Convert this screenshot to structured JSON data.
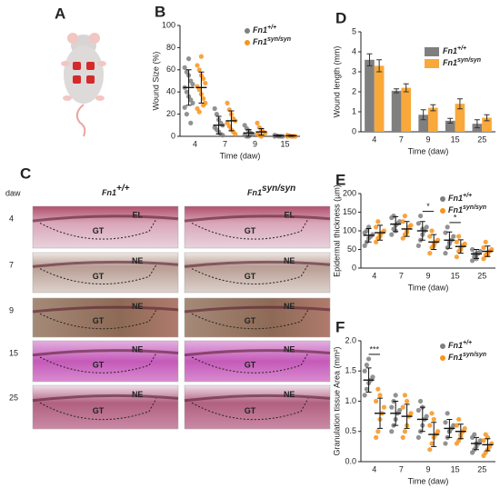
{
  "panel_a": {
    "label": "A"
  },
  "histology": {
    "label": "C",
    "axis_label": "daw",
    "columns": [
      {
        "name": "Fn1",
        "sup": "+/+"
      },
      {
        "name": "Fn1",
        "sup": "syn/syn"
      }
    ],
    "rows": [
      {
        "day": "4",
        "left": [
          "EL",
          "GT"
        ],
        "right": [
          "EL",
          "GT"
        ]
      },
      {
        "day": "7",
        "left": [
          "NE",
          "GT"
        ],
        "right": [
          "NE",
          "GT"
        ]
      },
      {
        "day": "9",
        "left": [
          "NE",
          "GT"
        ],
        "right": [
          "NE",
          "GT"
        ]
      },
      {
        "day": "15",
        "left": [
          "NE",
          "GT"
        ],
        "right": [
          "NE",
          "GT"
        ]
      },
      {
        "day": "25",
        "left": [
          "NE",
          "GT"
        ],
        "right": [
          "NE",
          "GT"
        ]
      }
    ]
  },
  "chart_data": [
    {
      "type": "dotplot",
      "label": "B",
      "x_label": "Time (daw)",
      "y_label": "Wound Size (%)",
      "categories": [
        "4",
        "7",
        "9",
        "15"
      ],
      "ylim": [
        0,
        100
      ],
      "yticks": [
        0,
        20,
        40,
        60,
        80,
        100
      ],
      "grid": false,
      "legend": "upper right",
      "series": [
        {
          "name": "Fn1",
          "name_sup": "+/+",
          "color": "#7f7f7f",
          "points": [
            [
              62,
              58,
              55,
              50,
              47,
              44,
              40,
              36,
              33,
              30,
              26,
              20,
              70,
              12
            ],
            [
              25,
              20,
              15,
              12,
              10,
              8,
              6,
              4,
              2,
              1
            ],
            [
              10,
              7,
              5,
              3,
              2,
              1,
              0,
              0
            ],
            [
              1,
              0.5,
              0,
              0,
              0,
              0
            ]
          ],
          "means": [
            44,
            10,
            3,
            0.5
          ],
          "sd": [
            16,
            8,
            3,
            0.5
          ]
        },
        {
          "name": "Fn1",
          "name_sup": "syn/syn",
          "color": "#f7941d",
          "points": [
            [
              64,
              60,
              55,
              52,
              48,
              45,
              42,
              38,
              34,
              30,
              25,
              22,
              72,
              28
            ],
            [
              30,
              24,
              20,
              16,
              14,
              12,
              9,
              6,
              4,
              2
            ],
            [
              12,
              8,
              6,
              4,
              3,
              2,
              1,
              0
            ],
            [
              1,
              0.5,
              0,
              0,
              0,
              0
            ]
          ],
          "means": [
            44,
            14,
            4,
            0.5
          ],
          "sd": [
            14,
            9,
            3,
            0.5
          ]
        }
      ]
    },
    {
      "type": "bar",
      "label": "D",
      "x_label": "Time (daw)",
      "y_label": "Wound length (mm)",
      "categories": [
        "4",
        "7",
        "9",
        "15",
        "25"
      ],
      "ylim": [
        0,
        5
      ],
      "yticks": [
        0,
        1,
        2,
        3,
        4,
        5
      ],
      "grid": false,
      "legend": "upper right",
      "series": [
        {
          "name": "Fn1",
          "name_sup": "+/+",
          "color": "#7f7f7f",
          "values": [
            3.6,
            2.05,
            0.85,
            0.55,
            0.4
          ],
          "errors": [
            0.3,
            0.1,
            0.25,
            0.12,
            0.2
          ]
        },
        {
          "name": "Fn1",
          "name_sup": "syn/syn",
          "color": "#f9a83a",
          "values": [
            3.3,
            2.2,
            1.2,
            1.4,
            0.7
          ],
          "errors": [
            0.3,
            0.2,
            0.15,
            0.25,
            0.15
          ]
        }
      ]
    },
    {
      "type": "dotplot",
      "label": "E",
      "x_label": "Time (daw)",
      "y_label": "Epidermal thickness (µm)",
      "categories": [
        "4",
        "7",
        "9",
        "15",
        "25"
      ],
      "ylim": [
        0,
        200
      ],
      "yticks": [
        0,
        50,
        100,
        150,
        200
      ],
      "grid": false,
      "legend": "upper right",
      "annotations": [
        {
          "text": "*",
          "category": "9"
        },
        {
          "text": "*",
          "category": "15"
        }
      ],
      "series": [
        {
          "name": "Fn1",
          "name_sup": "+/+",
          "color": "#7f7f7f",
          "points": [
            [
              60,
              70,
              80,
              85,
              90,
              95,
              100,
              110
            ],
            [
              90,
              105,
              115,
              120,
              125,
              135,
              140,
              100
            ],
            [
              60,
              75,
              90,
              100,
              110,
              120,
              140,
              105
            ],
            [
              40,
              55,
              65,
              75,
              85,
              95,
              110,
              70
            ],
            [
              20,
              30,
              35,
              40,
              45,
              50,
              38,
              25
            ]
          ],
          "means": [
            88,
            118,
            100,
            75,
            38
          ],
          "sd": [
            18,
            20,
            25,
            22,
            12
          ]
        },
        {
          "name": "Fn1",
          "name_sup": "syn/syn",
          "color": "#f7941d",
          "points": [
            [
              70,
              80,
              90,
              95,
              100,
              110,
              125,
              85
            ],
            [
              80,
              90,
              100,
              110,
              115,
              125,
              140,
              95
            ],
            [
              40,
              55,
              65,
              70,
              75,
              85,
              100,
              60
            ],
            [
              30,
              45,
              55,
              60,
              65,
              70,
              85,
              50
            ],
            [
              25,
              35,
              40,
              45,
              50,
              55,
              70,
              35
            ]
          ],
          "means": [
            95,
            105,
            70,
            58,
            45
          ],
          "sd": [
            20,
            20,
            20,
            18,
            14
          ]
        }
      ]
    },
    {
      "type": "dotplot",
      "label": "F",
      "x_label": "Time (daw)",
      "y_label": "Granulation tissue Area (mm²)",
      "categories": [
        "4",
        "7",
        "9",
        "15",
        "25"
      ],
      "ylim": [
        0,
        2
      ],
      "yticks": [
        {
          "value": 0,
          "label": "0.0"
        },
        {
          "value": 0.5,
          "label": "0.5"
        },
        {
          "value": 1,
          "label": "1.0"
        },
        {
          "value": 1.5,
          "label": "1.5"
        },
        {
          "value": 2,
          "label": "2.0"
        }
      ],
      "grid": false,
      "legend": "upper right",
      "annotations": [
        {
          "text": "***",
          "category": "4"
        }
      ],
      "series": [
        {
          "name": "Fn1",
          "name_sup": "+/+",
          "color": "#7f7f7f",
          "points": [
            [
              1.1,
              1.2,
              1.3,
              1.35,
              1.4,
              1.5,
              1.6,
              1.7
            ],
            [
              0.5,
              0.6,
              0.7,
              0.8,
              0.85,
              0.9,
              1.0,
              1.1
            ],
            [
              0.4,
              0.5,
              0.6,
              0.7,
              0.75,
              0.85,
              1.0,
              0.9
            ],
            [
              0.3,
              0.4,
              0.5,
              0.55,
              0.6,
              0.65,
              0.8,
              0.5
            ],
            [
              0.15,
              0.2,
              0.25,
              0.3,
              0.35,
              0.4,
              0.45,
              0.3
            ]
          ],
          "means": [
            1.35,
            0.8,
            0.7,
            0.55,
            0.3
          ],
          "sd": [
            0.2,
            0.2,
            0.2,
            0.15,
            0.1
          ]
        },
        {
          "name": "Fn1",
          "name_sup": "syn/syn",
          "color": "#f7941d",
          "points": [
            [
              0.4,
              0.5,
              0.7,
              0.8,
              0.9,
              1.0,
              1.2,
              1.1
            ],
            [
              0.4,
              0.5,
              0.6,
              0.75,
              0.8,
              0.9,
              1.1,
              1.0
            ],
            [
              0.2,
              0.3,
              0.4,
              0.45,
              0.5,
              0.6,
              0.8,
              0.7
            ],
            [
              0.3,
              0.35,
              0.45,
              0.5,
              0.55,
              0.6,
              0.7,
              0.4
            ],
            [
              0.1,
              0.15,
              0.2,
              0.25,
              0.3,
              0.35,
              0.45,
              0.4
            ]
          ],
          "means": [
            0.8,
            0.75,
            0.45,
            0.5,
            0.28
          ],
          "sd": [
            0.25,
            0.2,
            0.2,
            0.12,
            0.1
          ]
        }
      ]
    }
  ]
}
